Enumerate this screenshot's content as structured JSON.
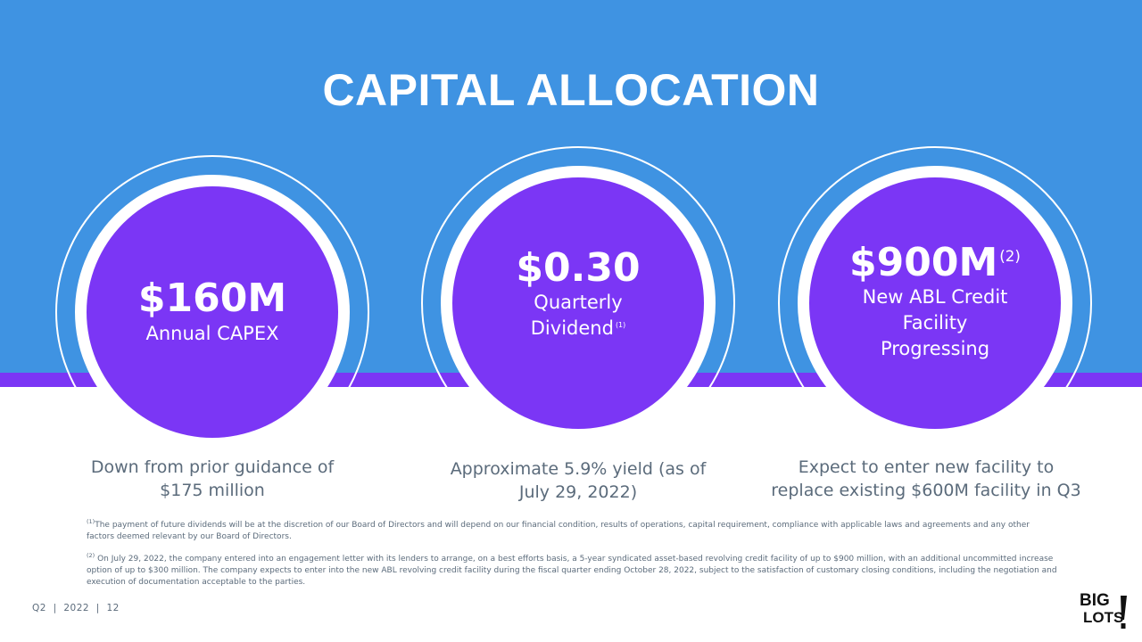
{
  "slide": {
    "title": "CAPITAL ALLOCATION"
  },
  "cards": [
    {
      "value": "$160M",
      "value_note": "",
      "label_lines": [
        "Annual CAPEX"
      ],
      "label_note": "",
      "caption_lines": [
        "Down from prior guidance of",
        "$175 million"
      ]
    },
    {
      "value": "$0.30",
      "value_note": "",
      "label_lines": [
        "Quarterly",
        "Dividend"
      ],
      "label_note": "(1)",
      "caption_lines": [
        "Approximate 5.9% yield (as of",
        "July 29, 2022)"
      ]
    },
    {
      "value": "$900M",
      "value_note": "(2)",
      "label_lines": [
        "New ABL Credit",
        "Facility",
        "Progressing"
      ],
      "label_note": "",
      "caption_lines": [
        "Expect to enter new facility to",
        "replace existing $600M facility in Q3"
      ]
    }
  ],
  "footnotes": [
    {
      "marker": "(1)",
      "text": "The payment of future dividends will be at the discretion of our Board of Directors and will depend on our financial condition, results of operations, capital requirement, compliance with applicable laws and agreements and any other factors deemed relevant by our Board of Directors."
    },
    {
      "marker": "(2)",
      "text": "On July 29, 2022, the company entered into an engagement letter with its lenders to arrange, on a best efforts basis, a 5-year syndicated asset-based revolving credit facility of up to $900 million, with an additional uncommitted increase option of up to $300 million. The company expects to enter into the new ABL revolving credit facility during the fiscal quarter ending October 28, 2022, subject to the satisfaction of customary closing conditions, including the negotiation and execution of documentation acceptable to the parties."
    }
  ],
  "footer": {
    "page_label": "Q2  |  2022  |  12"
  },
  "logo": {
    "line1": "BIG",
    "line2": "LOTS"
  },
  "colors": {
    "blue_band": "#3f93e2",
    "purple": "#7b36f5",
    "text_gray": "#5b6b7b"
  }
}
